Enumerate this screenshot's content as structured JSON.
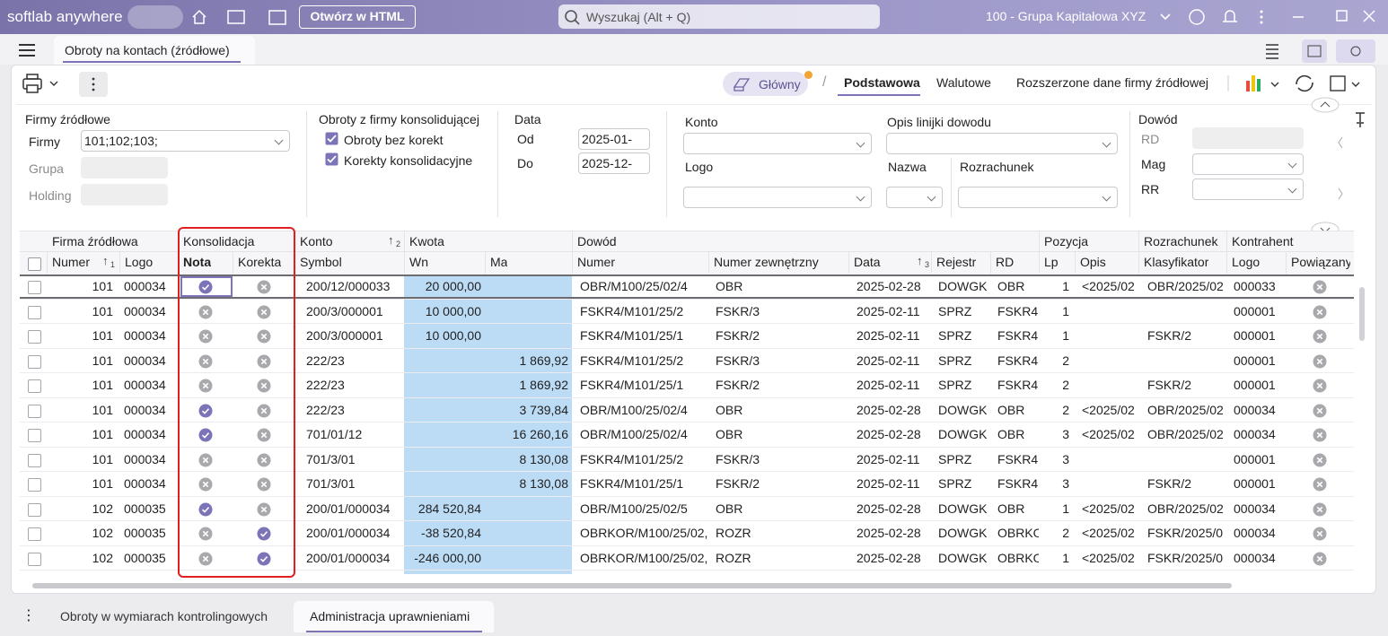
{
  "titlebar": {
    "app_name": "softlab anywhere",
    "open_html": "Otwórz w HTML",
    "search": "Wyszukaj (Alt + Q)",
    "company": "100 - Grupa Kapitałowa XYZ"
  },
  "tabs": [
    "Obroty na kontach  (źródłowe)"
  ],
  "toolbar": {
    "view": "Główny",
    "view_tabs": [
      "Podstawowa",
      "Walutowe",
      "Rozszerzone dane firmy źródłowej"
    ]
  },
  "filters": {
    "firmy": {
      "title": "Firmy źródłowe",
      "firmy_label": "Firmy",
      "firmy_value": "101;102;103;",
      "grupa_label": "Grupa",
      "holding_label": "Holding"
    },
    "obroty": {
      "title": "Obroty z firmy konsolidującej",
      "options": [
        "Obroty bez korekt",
        "Korekty konsolidacyjne"
      ]
    },
    "data": {
      "title": "Data",
      "od_label": "Od",
      "od_value": "2025-01-",
      "do_label": "Do",
      "do_value": "2025-12-"
    },
    "konto_label": "Konto",
    "logo_label": "Logo",
    "opis_label": "Opis linijki dowodu",
    "nazwa_label": "Nazwa",
    "rozrachunek_label": "Rozrachunek",
    "dowod": {
      "title": "Dowód",
      "rd_label": "RD",
      "mag_label": "Mag",
      "rr_label": "RR"
    }
  },
  "table": {
    "groups": [
      {
        "name": "Firma źródłowa"
      },
      {
        "name": "Konsolidacja"
      },
      {
        "name": "Konto",
        "sort": "2"
      },
      {
        "name": "Kwota"
      },
      {
        "name": "Dowód"
      },
      {
        "name": "Pozycja"
      },
      {
        "name": "Rozrachunek"
      },
      {
        "name": "Kontrahent"
      }
    ],
    "columns": [
      {
        "name": "Numer",
        "sort": "1"
      },
      {
        "name": "Logo"
      },
      {
        "name": "Nota"
      },
      {
        "name": "Korekta"
      },
      {
        "name": "Symbol"
      },
      {
        "name": "Wn"
      },
      {
        "name": "Ma"
      },
      {
        "name": "Numer"
      },
      {
        "name": "Numer zewnętrzny"
      },
      {
        "name": "Data",
        "sort": "3"
      },
      {
        "name": "Rejestr"
      },
      {
        "name": "RD"
      },
      {
        "name": "Lp"
      },
      {
        "name": "Opis"
      },
      {
        "name": "Klasyfikator"
      },
      {
        "name": "Logo"
      },
      {
        "name": "Powiązany"
      }
    ],
    "rows": [
      [
        "101",
        "000034",
        true,
        false,
        "200/12/000033",
        "20 000,00",
        null,
        "OBR/M100/25/02/4",
        "OBR",
        "2025-02-28",
        "DOWGK",
        "OBR",
        "1",
        "<2025/02",
        "OBR/2025/02",
        "000033",
        false
      ],
      [
        "101",
        "000034",
        false,
        false,
        "200/3/000001",
        "10 000,00",
        null,
        "FSKR4/M101/25/2",
        "FSKR/3",
        "2025-02-11",
        "SPRZ",
        "FSKR4",
        "1",
        null,
        null,
        "000001",
        false
      ],
      [
        "101",
        "000034",
        false,
        false,
        "200/3/000001",
        "10 000,00",
        null,
        "FSKR4/M101/25/1",
        "FSKR/2",
        "2025-02-11",
        "SPRZ",
        "FSKR4",
        "1",
        null,
        "FSKR/2",
        "000001",
        false
      ],
      [
        "101",
        "000034",
        false,
        false,
        "222/23",
        null,
        "1 869,92",
        "FSKR4/M101/25/2",
        "FSKR/3",
        "2025-02-11",
        "SPRZ",
        "FSKR4",
        "2",
        null,
        null,
        "000001",
        false
      ],
      [
        "101",
        "000034",
        false,
        false,
        "222/23",
        null,
        "1 869,92",
        "FSKR4/M101/25/1",
        "FSKR/2",
        "2025-02-11",
        "SPRZ",
        "FSKR4",
        "2",
        null,
        "FSKR/2",
        "000001",
        false
      ],
      [
        "101",
        "000034",
        true,
        false,
        "222/23",
        null,
        "3 739,84",
        "OBR/M100/25/02/4",
        "OBR",
        "2025-02-28",
        "DOWGK",
        "OBR",
        "2",
        "<2025/02",
        "OBR/2025/02",
        "000034",
        false
      ],
      [
        "101",
        "000034",
        true,
        false,
        "701/01/12",
        null,
        "16 260,16",
        "OBR/M100/25/02/4",
        "OBR",
        "2025-02-28",
        "DOWGK",
        "OBR",
        "3",
        "<2025/02",
        "OBR/2025/02",
        "000034",
        false
      ],
      [
        "101",
        "000034",
        false,
        false,
        "701/3/01",
        null,
        "8 130,08",
        "FSKR4/M101/25/2",
        "FSKR/3",
        "2025-02-11",
        "SPRZ",
        "FSKR4",
        "3",
        null,
        null,
        "000001",
        false
      ],
      [
        "101",
        "000034",
        false,
        false,
        "701/3/01",
        null,
        "8 130,08",
        "FSKR4/M101/25/1",
        "FSKR/2",
        "2025-02-11",
        "SPRZ",
        "FSKR4",
        "3",
        null,
        "FSKR/2",
        "000001",
        false
      ],
      [
        "102",
        "000035",
        true,
        false,
        "200/01/000034",
        "284 520,84",
        null,
        "OBR/M100/25/02/5",
        "OBR",
        "2025-02-28",
        "DOWGK",
        "OBR",
        "1",
        "<2025/02",
        "OBR/2025/02",
        "000034",
        false
      ],
      [
        "102",
        "000035",
        false,
        true,
        "200/01/000034",
        "-38 520,84",
        null,
        "OBRKOR/M100/25/02,",
        "ROZR",
        "2025-02-28",
        "DOWGK",
        "OBRKO",
        "2",
        "<2025/02",
        "FSKR/2025/0",
        "000034",
        false
      ],
      [
        "102",
        "000035",
        false,
        true,
        "200/01/000034",
        "-246 000,00",
        null,
        "OBRKOR/M100/25/02,",
        "ROZR",
        "2025-02-28",
        "DOWGK",
        "OBRKO",
        "1",
        "<2025/02",
        "FSKR/2025/0",
        "000034",
        false
      ]
    ]
  },
  "bottom_tabs": [
    "Obroty w wymiarach kontrolingowych",
    "Administracja uprawnieniami"
  ]
}
